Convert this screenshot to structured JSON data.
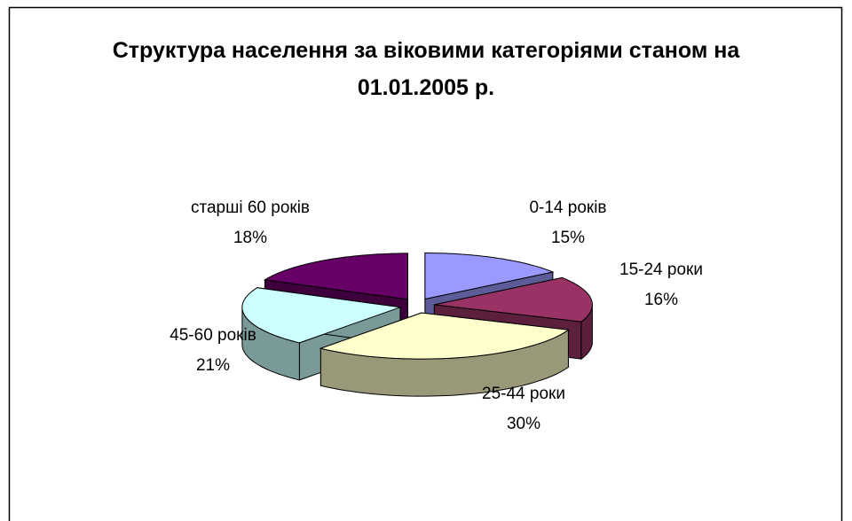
{
  "chart_data": {
    "type": "pie3d",
    "title": "Структура населення за віковими категоріями станом на 01.01.2005 р.",
    "categories": [
      "0-14 років",
      "15-24 роки",
      "25-44 роки",
      "45-60 років",
      "старші 60 років"
    ],
    "values": [
      15,
      16,
      30,
      21,
      18
    ],
    "value_labels": [
      "15%",
      "16%",
      "30%",
      "21%",
      "18%"
    ],
    "colors": [
      "#9999ff",
      "#993366",
      "#ffffcc",
      "#ccffff",
      "#660066"
    ]
  }
}
